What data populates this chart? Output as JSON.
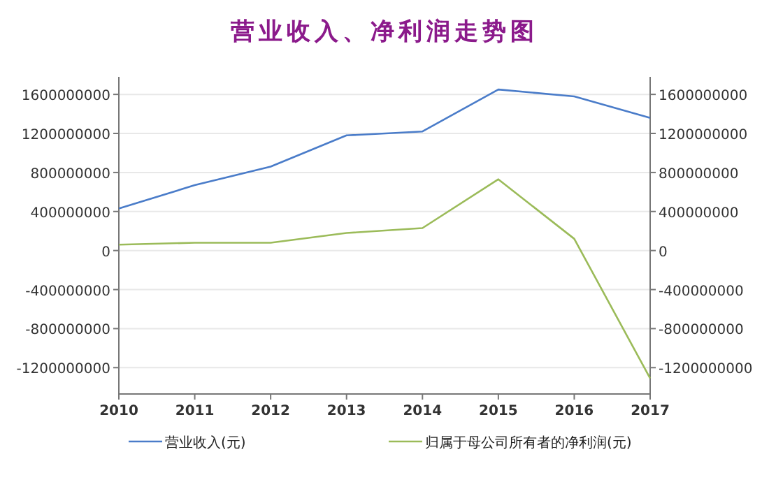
{
  "chart_data": {
    "type": "line",
    "title": "营业收入、净利润走势图",
    "x": [
      2010,
      2011,
      2012,
      2013,
      2014,
      2015,
      2016,
      2017
    ],
    "xlim": [
      2010,
      2017
    ],
    "xticks": [
      2010,
      2011,
      2012,
      2013,
      2014,
      2015,
      2016,
      2017
    ],
    "ylim": [
      -1470000000,
      1780000000
    ],
    "yticks": [
      -1200000000,
      -800000000,
      -400000000,
      0,
      400000000,
      800000000,
      1200000000,
      1600000000
    ],
    "y2lim": [
      -1470000000,
      1780000000
    ],
    "y2ticks": [
      -1200000000,
      -800000000,
      -400000000,
      0,
      400000000,
      800000000,
      1200000000,
      1600000000
    ],
    "grid": "y",
    "legend": "bottom",
    "series": [
      {
        "name": "营业收入(元)",
        "color": "#4a7cc9",
        "values": [
          430000000,
          670000000,
          860000000,
          1180000000,
          1220000000,
          1650000000,
          1580000000,
          1360000000
        ]
      },
      {
        "name": "归属于母公司所有者的净利润(元)",
        "color": "#9bbb59",
        "values": [
          60000000,
          80000000,
          80000000,
          180000000,
          230000000,
          730000000,
          120000000,
          -1310000000
        ]
      }
    ]
  }
}
